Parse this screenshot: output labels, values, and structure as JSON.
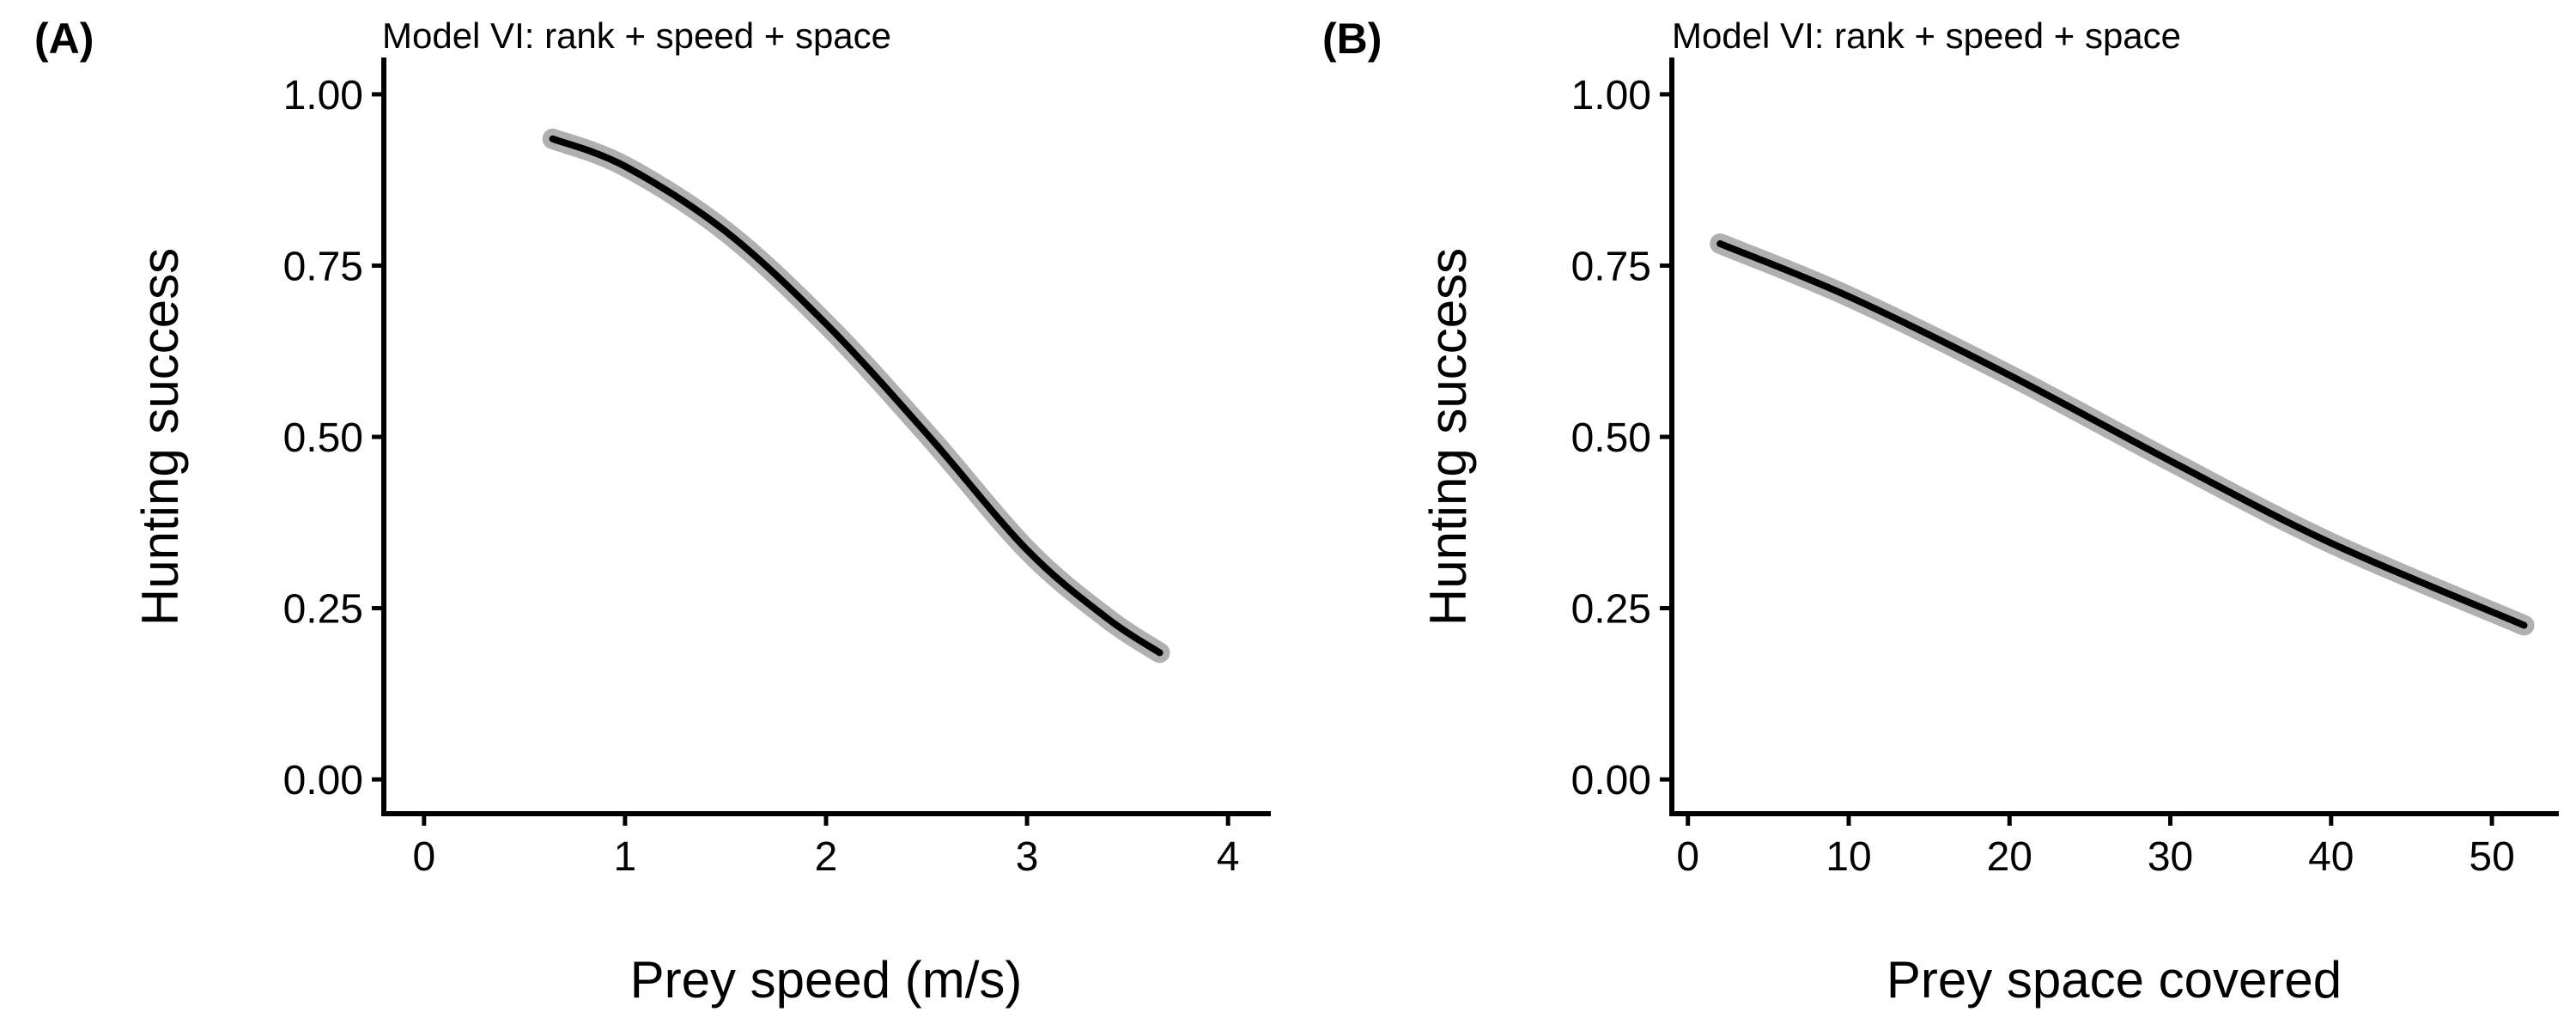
{
  "chart_data": [
    {
      "type": "line",
      "panel": "(A)",
      "title": "Model VI: rank + speed + space",
      "xlabel": "Prey speed (m/s)",
      "ylabel": "Hunting success",
      "xlim": [
        -0.2,
        4.2
      ],
      "ylim": [
        -0.05,
        1.05
      ],
      "xticks": [
        0,
        1,
        2,
        3,
        4
      ],
      "xtick_labels": [
        "0",
        "1",
        "2",
        "3",
        "4"
      ],
      "yticks": [
        0,
        0.25,
        0.5,
        0.75,
        1
      ],
      "ytick_labels": [
        "0.00",
        "0.25",
        "0.50",
        "0.75",
        "1.00"
      ],
      "grid": false,
      "legend": "none",
      "series": [
        {
          "x": [
            0.64,
            1.0,
            1.5,
            2.0,
            2.5,
            3.0,
            3.4,
            3.66
          ],
          "y": [
            0.935,
            0.895,
            0.8,
            0.665,
            0.505,
            0.335,
            0.235,
            0.185
          ],
          "ci_halfwidth": 0.008,
          "color": "#000000",
          "ci_color": "#b0b0b0"
        }
      ]
    },
    {
      "type": "line",
      "panel": "(B)",
      "title": "Model VI: rank + speed + space",
      "xlabel": "Prey space covered",
      "ylabel": "Hunting success",
      "xlim": [
        -1,
        54
      ],
      "ylim": [
        -0.05,
        1.05
      ],
      "xticks": [
        0,
        10,
        20,
        30,
        40,
        50
      ],
      "xtick_labels": [
        "0",
        "10",
        "20",
        "30",
        "40",
        "50"
      ],
      "yticks": [
        0,
        0.25,
        0.5,
        0.75,
        1
      ],
      "ytick_labels": [
        "0.00",
        "0.25",
        "0.50",
        "0.75",
        "1.00"
      ],
      "grid": false,
      "legend": "none",
      "series": [
        {
          "x": [
            2,
            10,
            20,
            30,
            40,
            52
          ],
          "y": [
            0.782,
            0.705,
            0.59,
            0.465,
            0.345,
            0.225
          ],
          "ci_halfwidth": 0.012,
          "color": "#000000",
          "ci_color": "#b0b0b0"
        }
      ]
    }
  ]
}
